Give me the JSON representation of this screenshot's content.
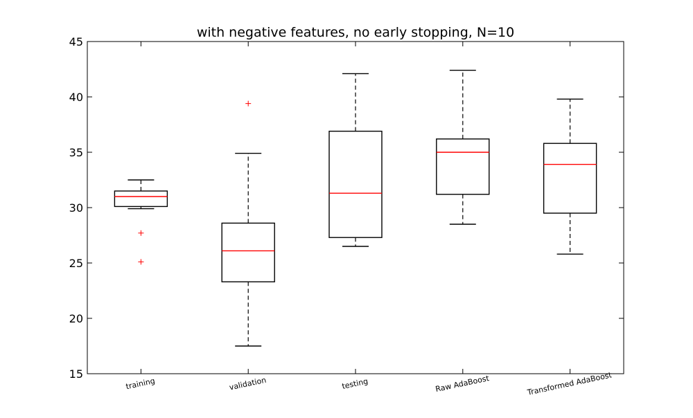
{
  "chart_data": {
    "type": "box",
    "title": "with negative features, no early stopping, N=10",
    "xlabel": "",
    "ylabel": "",
    "ylim": [
      15,
      45
    ],
    "yticks": [
      15,
      20,
      25,
      30,
      35,
      40,
      45
    ],
    "grid": false,
    "categories": [
      "training",
      "validation",
      "testing",
      "Raw AdaBoost",
      "Transformed AdaBoost"
    ],
    "boxes": [
      {
        "category": "training",
        "whisker_low": 29.9,
        "q1": 30.1,
        "median": 31.0,
        "q3": 31.5,
        "whisker_high": 32.5,
        "outliers": [
          27.7,
          25.1
        ]
      },
      {
        "category": "validation",
        "whisker_low": 17.5,
        "q1": 23.3,
        "median": 26.1,
        "q3": 28.6,
        "whisker_high": 34.9,
        "outliers": [
          39.4
        ]
      },
      {
        "category": "testing",
        "whisker_low": 26.5,
        "q1": 27.3,
        "median": 31.3,
        "q3": 36.9,
        "whisker_high": 42.1,
        "outliers": []
      },
      {
        "category": "Raw AdaBoost",
        "whisker_low": 28.5,
        "q1": 31.2,
        "median": 35.0,
        "q3": 36.2,
        "whisker_high": 42.4,
        "outliers": []
      },
      {
        "category": "Transformed AdaBoost",
        "whisker_low": 25.8,
        "q1": 29.5,
        "median": 33.9,
        "q3": 35.8,
        "whisker_high": 39.8,
        "outliers": []
      }
    ],
    "colors": {
      "box": "#000000",
      "median": "#ff0000",
      "outlier": "#ff0000"
    }
  }
}
